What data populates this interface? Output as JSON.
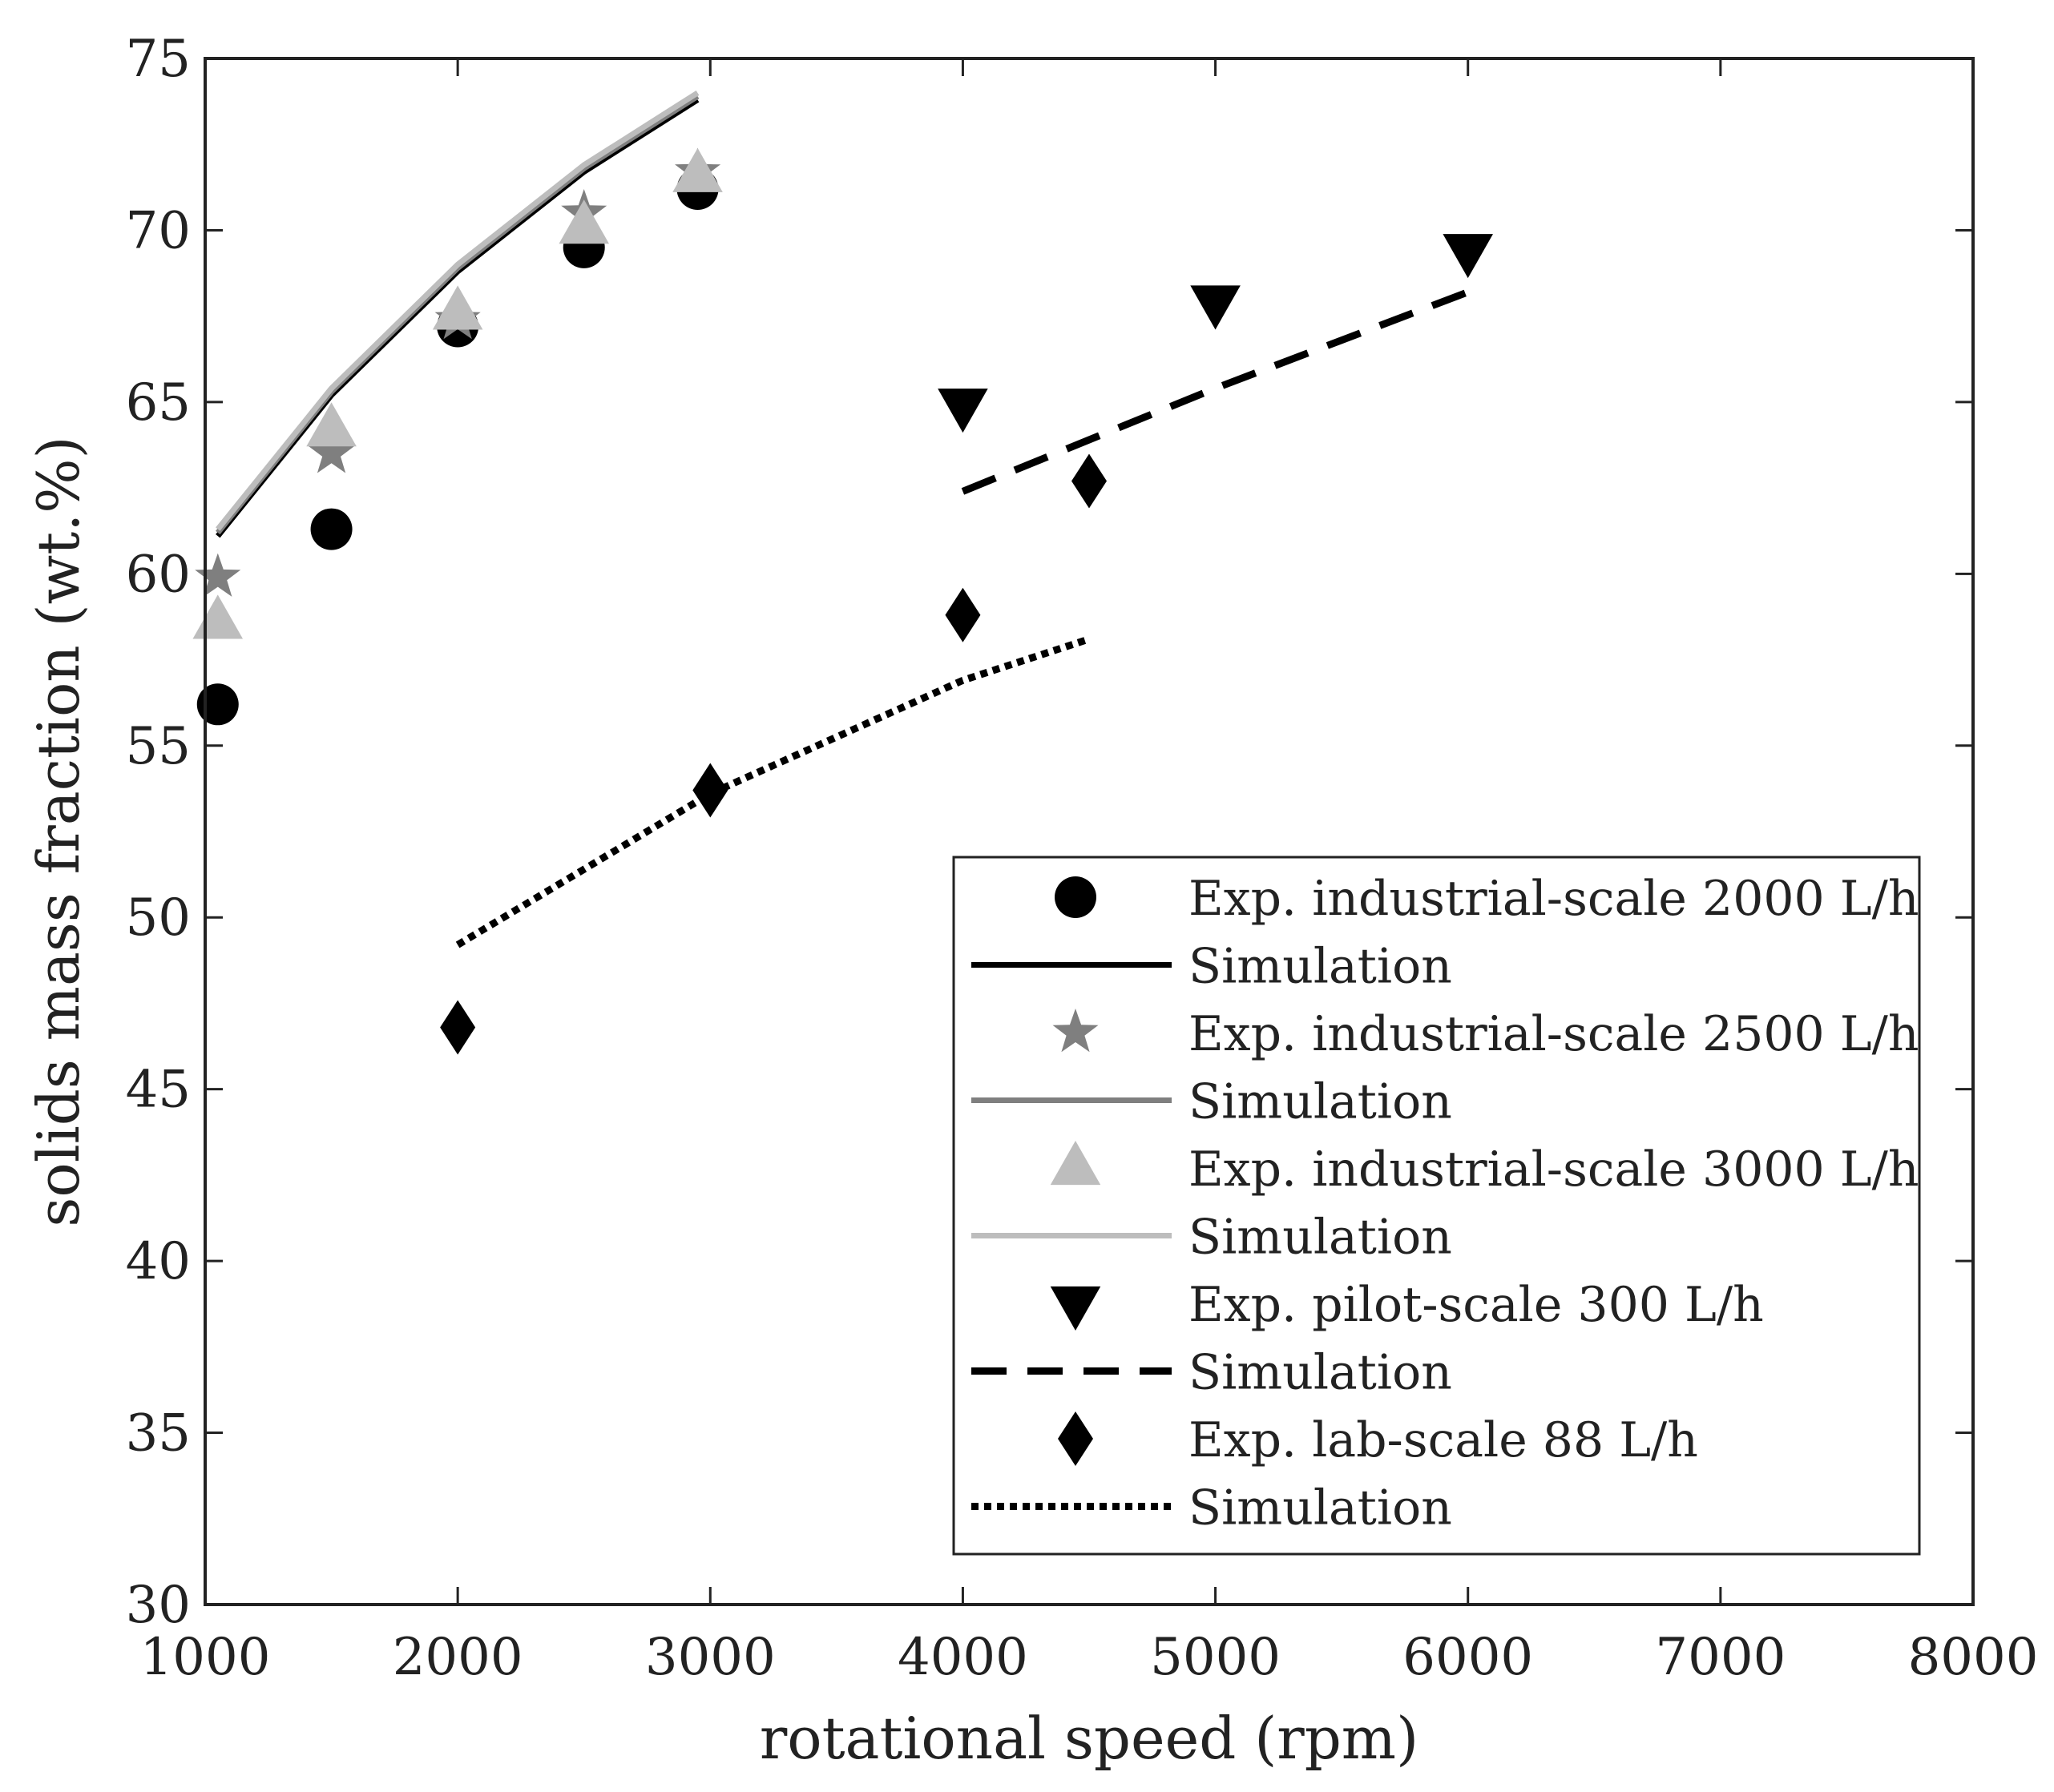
{
  "chart_data": {
    "type": "scatter",
    "title": "",
    "xlabel": "rotational speed (rpm)",
    "ylabel": "solids mass fraction (wt.%)",
    "xlim": [
      1000,
      8000
    ],
    "ylim": [
      30,
      75
    ],
    "xticks": [
      1000,
      2000,
      3000,
      4000,
      5000,
      6000,
      7000,
      8000
    ],
    "yticks": [
      30,
      35,
      40,
      45,
      50,
      55,
      60,
      65,
      70,
      75
    ],
    "legend_position": "lower-right",
    "series": [
      {
        "name": "Exp. industrial-scale 2000 L/h",
        "kind": "markers",
        "marker": "circle",
        "color": "#000000",
        "x": [
          1050,
          1500,
          2000,
          2500,
          2950
        ],
        "y": [
          56.2,
          61.3,
          67.2,
          69.5,
          71.2
        ]
      },
      {
        "name": "Simulation",
        "kind": "line",
        "dash": "solid",
        "color": "#000000",
        "x": [
          1050,
          1500,
          2000,
          2500,
          2950
        ],
        "y": [
          61.1,
          65.2,
          68.8,
          71.7,
          73.8
        ]
      },
      {
        "name": "Exp. industrial-scale 2500 L/h",
        "kind": "markers",
        "marker": "star",
        "color": "#7f7f7f",
        "x": [
          1050,
          1500,
          2000,
          2500,
          2950
        ],
        "y": [
          59.9,
          63.5,
          67.4,
          70.5,
          71.7
        ]
      },
      {
        "name": "Simulation",
        "kind": "line",
        "dash": "solid",
        "color": "#7f7f7f",
        "x": [
          1050,
          1500,
          2000,
          2500,
          2950
        ],
        "y": [
          61.2,
          65.3,
          68.9,
          71.8,
          73.9
        ]
      },
      {
        "name": "Exp. industrial-scale 3000 L/h",
        "kind": "markers",
        "marker": "triangle-up",
        "color": "#bdbdbd",
        "x": [
          1050,
          1500,
          2000,
          2500,
          2950
        ],
        "y": [
          58.6,
          64.2,
          67.6,
          70.1,
          71.6
        ]
      },
      {
        "name": "Simulation",
        "kind": "line",
        "dash": "solid",
        "color": "#bdbdbd",
        "x": [
          1050,
          1500,
          2000,
          2500,
          2950
        ],
        "y": [
          61.3,
          65.4,
          69.0,
          71.9,
          74.0
        ]
      },
      {
        "name": "Exp. pilot-scale 300 L/h",
        "kind": "markers",
        "marker": "triangle-down",
        "color": "#000000",
        "x": [
          4000,
          5000,
          6000
        ],
        "y": [
          64.9,
          67.9,
          69.4
        ]
      },
      {
        "name": "Simulation",
        "kind": "line",
        "dash": "dashed",
        "color": "#000000",
        "x": [
          4000,
          5000,
          6000
        ],
        "y": [
          62.4,
          65.4,
          68.2
        ]
      },
      {
        "name": "Exp. lab-scale 88 L/h",
        "kind": "markers",
        "marker": "diamond",
        "color": "#000000",
        "x": [
          2000,
          3000,
          4000,
          4500
        ],
        "y": [
          46.8,
          53.7,
          58.8,
          62.7
        ]
      },
      {
        "name": "Simulation",
        "kind": "line",
        "dash": "dotted",
        "color": "#000000",
        "x": [
          2000,
          3000,
          4000,
          4500
        ],
        "y": [
          49.2,
          53.6,
          56.9,
          58.1
        ]
      }
    ]
  }
}
